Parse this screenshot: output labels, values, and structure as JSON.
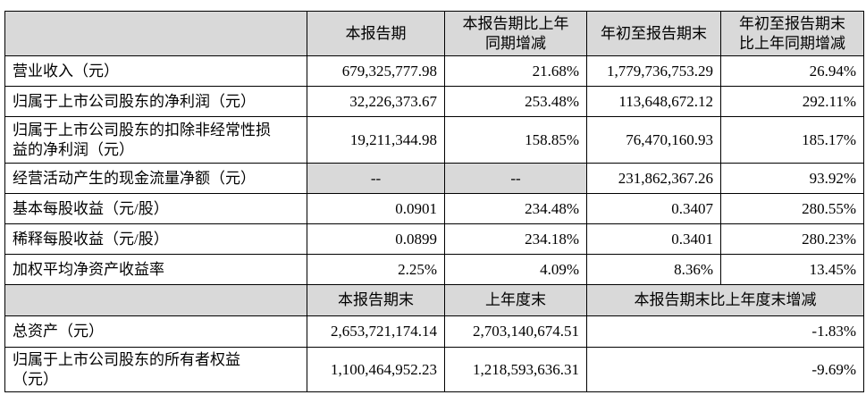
{
  "table": {
    "headers": [
      "本报告期",
      "本报告期比上年\n同期增减",
      "年初至报告期末",
      "年初至报告期末\n比上年同期增减"
    ],
    "rows": [
      [
        "营业收入（元）",
        "679,325,777.98",
        "21.68%",
        "1,779,736,753.29",
        "26.94%"
      ],
      [
        "归属于上市公司股东的净利润（元）",
        "32,226,373.67",
        "253.48%",
        "113,648,672.12",
        "292.11%"
      ],
      [
        "归属于上市公司股东的扣除非经常性损\n益的净利润（元）",
        "19,211,344.98",
        "158.85%",
        "76,470,160.93",
        "185.17%"
      ],
      [
        "经营活动产生的现金流量净额（元）",
        "--",
        "--",
        "231,862,367.26",
        "93.92%"
      ],
      [
        "基本每股收益（元/股）",
        "0.0901",
        "234.48%",
        "0.3407",
        "280.55%"
      ],
      [
        "稀释每股收益（元/股）",
        "0.0899",
        "234.18%",
        "0.3401",
        "280.23%"
      ],
      [
        "加权平均净资产收益率",
        "2.25%",
        "4.09%",
        "8.36%",
        "13.45%"
      ]
    ],
    "headers2": [
      "本报告期末",
      "上年度末",
      "本报告期末比上年度末增减"
    ],
    "rows2": [
      [
        "总资产（元）",
        "2,653,721,174.14",
        "2,703,140,674.51",
        "-1.83%"
      ],
      [
        "归属于上市公司股东的所有者权益\n（元）",
        "1,100,464,952.23",
        "1,218,593,636.31",
        "-9.69%"
      ]
    ]
  }
}
